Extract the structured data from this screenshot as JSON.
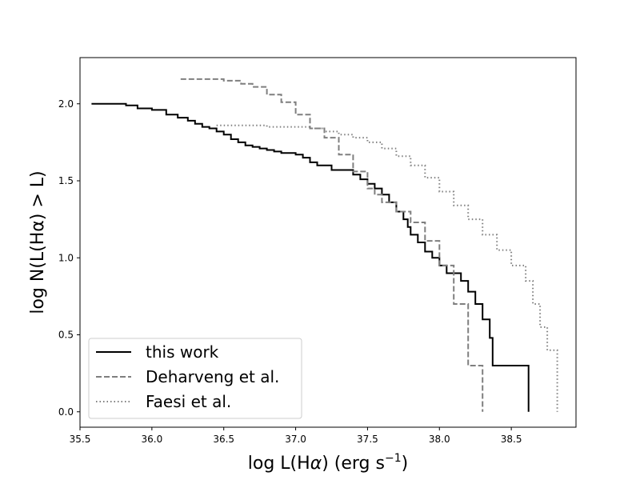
{
  "chart_data": {
    "type": "line",
    "xlabel_main": "log L(H",
    "xlabel_alpha": "α",
    "xlabel_unit": ") (erg s",
    "xlabel_exp": "−1",
    "xlabel_close": ")",
    "ylabel": "log N(L(Hα) > L)",
    "xlim": [
      35.5,
      38.95
    ],
    "ylim": [
      -0.1,
      2.3
    ],
    "x_ticks": [
      35.5,
      36.0,
      36.5,
      37.0,
      37.5,
      38.0,
      38.5
    ],
    "x_tick_labels": [
      "35.5",
      "36.0",
      "36.5",
      "37.0",
      "37.5",
      "38.0",
      "38.5"
    ],
    "y_ticks": [
      0.0,
      0.5,
      1.0,
      1.5,
      2.0
    ],
    "y_tick_labels": [
      "0.0",
      "0.5",
      "1.0",
      "1.5",
      "2.0"
    ],
    "grid": false,
    "legend_position": "lower-left",
    "series": [
      {
        "name": "this work",
        "style": "solid",
        "color": "#000000",
        "x": [
          35.58,
          35.75,
          35.82,
          35.9,
          36.0,
          36.1,
          36.18,
          36.25,
          36.3,
          36.35,
          36.4,
          36.45,
          36.5,
          36.55,
          36.6,
          36.65,
          36.7,
          36.75,
          36.8,
          36.85,
          36.9,
          37.0,
          37.05,
          37.1,
          37.15,
          37.25,
          37.35,
          37.4,
          37.45,
          37.5,
          37.55,
          37.6,
          37.65,
          37.7,
          37.75,
          37.78,
          37.8,
          37.85,
          37.9,
          37.95,
          38.0,
          38.05,
          38.12,
          38.15,
          38.2,
          38.25,
          38.3,
          38.35,
          38.37,
          38.62
        ],
        "y": [
          2.0,
          2.0,
          1.99,
          1.97,
          1.96,
          1.93,
          1.91,
          1.89,
          1.87,
          1.85,
          1.84,
          1.82,
          1.8,
          1.77,
          1.75,
          1.73,
          1.72,
          1.71,
          1.7,
          1.69,
          1.68,
          1.67,
          1.65,
          1.62,
          1.6,
          1.57,
          1.57,
          1.54,
          1.51,
          1.48,
          1.45,
          1.41,
          1.36,
          1.3,
          1.25,
          1.2,
          1.15,
          1.1,
          1.04,
          1.0,
          0.95,
          0.9,
          0.9,
          0.85,
          0.78,
          0.7,
          0.6,
          0.48,
          0.3,
          0.0
        ]
      },
      {
        "name": "Deharveng et al.",
        "style": "dashed",
        "color": "#7f7f7f",
        "x": [
          36.2,
          36.4,
          36.5,
          36.62,
          36.7,
          36.8,
          36.9,
          37.0,
          37.1,
          37.2,
          37.3,
          37.4,
          37.5,
          37.55,
          37.6,
          37.7,
          37.8,
          37.9,
          38.0,
          38.1,
          38.2,
          38.3
        ],
        "y": [
          2.16,
          2.16,
          2.15,
          2.13,
          2.11,
          2.06,
          2.01,
          1.93,
          1.84,
          1.78,
          1.67,
          1.56,
          1.45,
          1.41,
          1.36,
          1.3,
          1.23,
          1.11,
          0.95,
          0.7,
          0.3,
          0.0
        ]
      },
      {
        "name": "Faesi et al.",
        "style": "dotted",
        "color": "#7f7f7f",
        "x": [
          36.45,
          36.6,
          36.8,
          37.0,
          37.1,
          37.2,
          37.3,
          37.4,
          37.5,
          37.6,
          37.7,
          37.8,
          37.9,
          38.0,
          38.1,
          38.2,
          38.3,
          38.4,
          38.5,
          38.6,
          38.65,
          38.7,
          38.75,
          38.82
        ],
        "y": [
          1.86,
          1.86,
          1.85,
          1.85,
          1.84,
          1.82,
          1.8,
          1.78,
          1.75,
          1.71,
          1.66,
          1.6,
          1.52,
          1.43,
          1.34,
          1.25,
          1.15,
          1.05,
          0.95,
          0.85,
          0.7,
          0.55,
          0.4,
          0.0
        ]
      }
    ]
  }
}
